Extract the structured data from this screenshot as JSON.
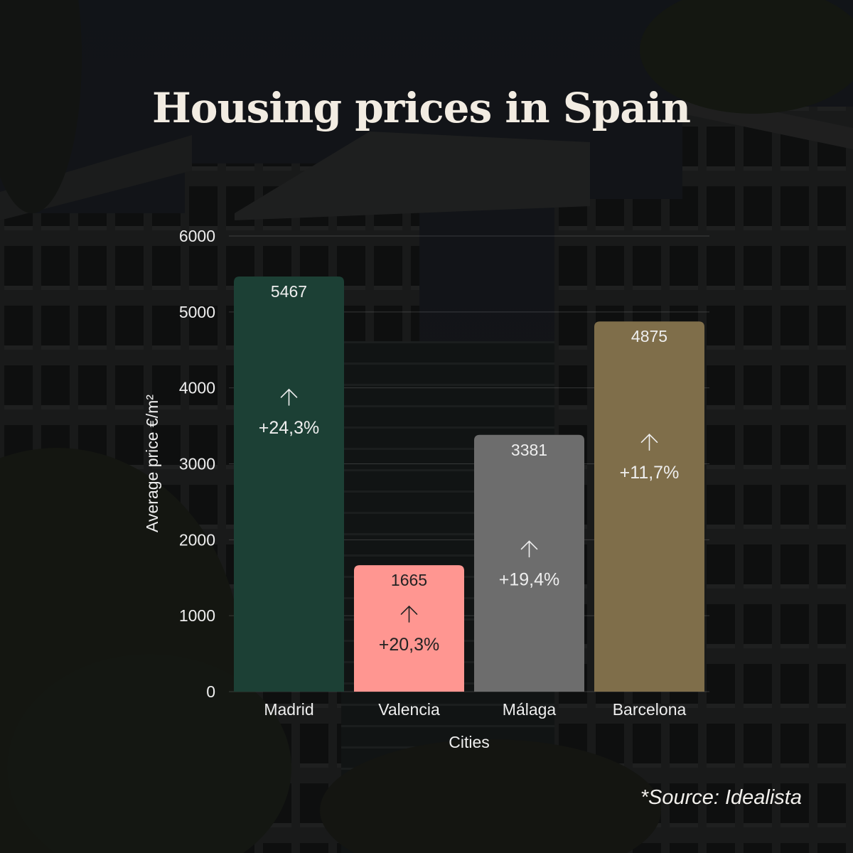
{
  "title": "Housing prices in Spain",
  "source": "*Source: Idealista",
  "chart_data": {
    "type": "bar",
    "title": "Housing prices in Spain",
    "xlabel": "Cities",
    "ylabel": "Average price €/m²",
    "ylim": [
      0,
      6000
    ],
    "yticks": [
      0,
      1000,
      2000,
      3000,
      4000,
      5000,
      6000
    ],
    "grid": true,
    "categories": [
      "Madrid",
      "Valencia",
      "Málaga",
      "Barcelona"
    ],
    "values": [
      5467,
      1665,
      3381,
      4875
    ],
    "value_labels": [
      "5467",
      "1665",
      "3381",
      "4875"
    ],
    "changes": [
      "+24,3%",
      "+20,3%",
      "+19,4%",
      "+11,7%"
    ],
    "change_icon": "arrow-up-icon",
    "colors": [
      "#1c4035",
      "#ff9691",
      "#6d6d6d",
      "#7f6e4a"
    ],
    "label_colors": [
      "#eeeeee",
      "#222222",
      "#eeeeee",
      "#eeeeee"
    ]
  }
}
